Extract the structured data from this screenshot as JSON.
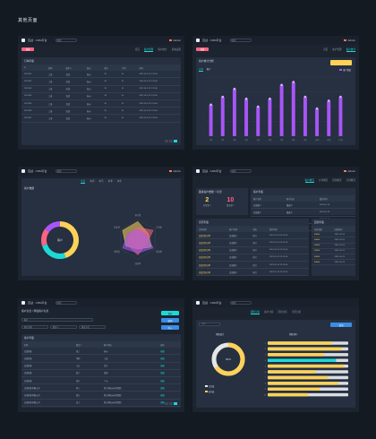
{
  "page_title": "其他页面",
  "app": {
    "name": "百战 · CRM平台",
    "search_placeholder": "搜索",
    "user": "Admin"
  },
  "colors": {
    "accent_cyan": "#1dd9d6",
    "accent_pink": "#ff6384",
    "accent_yellow": "#ffd257",
    "accent_purple": "#a855f7",
    "accent_blue": "#3a8ee6",
    "bg": "#131a22",
    "panel": "#263040"
  },
  "s1": {
    "btn": "新建",
    "tabs": [
      "首页",
      "客户管理",
      "客户统计",
      "系统设置"
    ],
    "active_tab": 1,
    "panel_title": "订单列表",
    "headers": [
      "ID",
      "名称",
      "联系人",
      "城市",
      "客户",
      "订单",
      "时间"
    ],
    "rows": [
      [
        "2021101",
        "上海",
        "百战",
        "杭州",
        "30",
        "41",
        "2021-01-13 12:12:00"
      ],
      [
        "2021102",
        "上海",
        "百战",
        "杭州",
        "30",
        "41",
        "2021-01-13 12:12:00"
      ],
      [
        "2021103",
        "上海",
        "百战",
        "杭州",
        "30",
        "41",
        "2021-01-13 12:12:00"
      ],
      [
        "2021104",
        "上海",
        "百战",
        "杭州",
        "30",
        "41",
        "2021-01-13 12:12:00"
      ],
      [
        "2021105",
        "上海",
        "百战",
        "杭州",
        "30",
        "41",
        "2021-01-13 12:12:00"
      ],
      [
        "2021106",
        "上海",
        "百战",
        "杭州",
        "30",
        "41",
        "2021-01-13 12:12:00"
      ],
      [
        "2021107",
        "上海",
        "百战",
        "杭州",
        "30",
        "41",
        "2021-01-13 12:12:00"
      ]
    ]
  },
  "s2": {
    "btn": "新建",
    "tabs": [
      "首页",
      "客户管理",
      "客户统计"
    ],
    "active_tab": 2,
    "panel_title": "客户统计分析",
    "sub_tabs": [
      "订单",
      "客户"
    ],
    "legend": "客户数量",
    "yellow_btn": "",
    "chart_data": {
      "type": "bar",
      "categories": [
        "1月",
        "2月",
        "3月",
        "4月",
        "5月",
        "6月",
        "7月",
        "8月",
        "9月",
        "10月",
        "11月",
        "12月"
      ],
      "values": [
        32,
        40,
        48,
        38,
        30,
        38,
        52,
        55,
        40,
        28,
        36,
        40
      ],
      "ylim": [
        0,
        60
      ]
    }
  },
  "s3": {
    "tabs": [
      "今日",
      "本周",
      "本月",
      "本季",
      "本年"
    ],
    "active_tab": 0,
    "panel_title": "客户数据",
    "donut_center": "客户",
    "donut": [
      {
        "name": "A",
        "value": 45,
        "color": "#ffd257"
      },
      {
        "name": "B",
        "value": 25,
        "color": "#1dd9d6"
      },
      {
        "name": "C",
        "value": 15,
        "color": "#ff6384"
      },
      {
        "name": "D",
        "value": 15,
        "color": "#a855f7"
      }
    ],
    "radar_labels": [
      "客户数",
      "订单数",
      "成交额",
      "回款率",
      "满意度",
      "转化率"
    ]
  },
  "s4": {
    "tabs": [
      "客户概况",
      "订单概况",
      "回款概况",
      "合同概况"
    ],
    "active_tab": 0,
    "stats_title": "跟进客户数量（今日）",
    "stat_a": "2",
    "stat_b": "10",
    "stat_a_label": "新增客户",
    "stat_b_label": "跟进客户",
    "right_title": "客户列表",
    "right_headers": [
      "客户名称",
      "客户状态",
      "联系时间"
    ],
    "right_rows": [
      [
        "百战客户",
        "跟进中",
        "2021-01-13"
      ],
      [
        "百战客户",
        "跟进中",
        "2021-01-13"
      ],
      [
        "百战客户",
        "跟进中",
        "2021-01-13"
      ],
      [
        "百战客户",
        "跟进中",
        "2021-01-13"
      ]
    ],
    "bottom_title": "合同列表",
    "bottom_headers": [
      "合同名称",
      "客户名称",
      "状态",
      "签约时间"
    ],
    "bottom_rows": [
      [
        "百战合同订单",
        "百战客户",
        "执行",
        "2021-01-13 12:12:00"
      ],
      [
        "百战合同订单",
        "百战客户",
        "执行",
        "2021-01-13 12:12:00"
      ],
      [
        "百战合同订单",
        "百战客户",
        "执行",
        "2021-01-13 12:12:00"
      ],
      [
        "百战合同订单",
        "百战客户",
        "执行",
        "2021-01-13 12:12:00"
      ],
      [
        "百战合同订单",
        "百战客户",
        "执行",
        "2021-01-13 12:12:00"
      ],
      [
        "百战合同订单",
        "百战客户",
        "执行",
        "2021-01-13 12:12:00"
      ]
    ],
    "side_title": "回款列表",
    "side_headers": [
      "回款金额",
      "回款时间"
    ],
    "side_rows": [
      [
        "30000",
        "2021-01-13"
      ],
      [
        "30000",
        "2021-01-13"
      ],
      [
        "30000",
        "2021-01-13"
      ],
      [
        "30000",
        "2021-01-13"
      ],
      [
        "30000",
        "2021-01-13"
      ],
      [
        "30000",
        "2021-01-13"
      ]
    ]
  },
  "s5": {
    "form_title": "客户信息 / 添加客户信息",
    "fields": [
      "客户",
      "客户名称",
      "联系人",
      "联系方式"
    ],
    "btn_a": "保存",
    "btn_b": "取消",
    "btn_c": "导入",
    "list_title": "客户列表",
    "headers": [
      "名称",
      "联系人",
      "客户地址",
      "操作"
    ],
    "rows": [
      [
        "百战科技",
        "张三",
        "杭州",
        "编辑"
      ],
      [
        "百战科技",
        "李四",
        "上海",
        "编辑"
      ],
      [
        "百战科技",
        "王五",
        "北京",
        "编辑"
      ],
      [
        "百战科技",
        "赵六",
        "深圳",
        "编辑"
      ],
      [
        "百战科技",
        "钱七",
        "广州",
        "编辑"
      ],
      [
        "百战科技有限公司",
        "孙八",
        "浙江省杭州市西湖区",
        "编辑"
      ],
      [
        "百战科技有限公司",
        "周九",
        "浙江省杭州市西湖区",
        "编辑"
      ],
      [
        "百战科技有限公司",
        "吴十",
        "浙江省杭州市西湖区",
        "编辑"
      ]
    ]
  },
  "s6": {
    "tabs": [
      "销售分析",
      "客户分析",
      "回款分析",
      "合同分析"
    ],
    "active_tab": 0,
    "select": "2021",
    "btn": "查询",
    "left_title": "销售统计",
    "right_title": "销售排行",
    "donut_center": "66%",
    "donut_value": 66,
    "legend": [
      "已完成",
      "未完成"
    ],
    "bars": [
      {
        "name": "1",
        "value": 80,
        "color": "#ffd257"
      },
      {
        "name": "2",
        "value": 92,
        "color": "#ffd257"
      },
      {
        "name": "3",
        "value": 70,
        "color": "#ffd257"
      },
      {
        "name": "4",
        "value": 85,
        "color": "#1dd9d6"
      },
      {
        "name": "5",
        "value": 95,
        "color": "#ffd257"
      },
      {
        "name": "6",
        "value": 60,
        "color": "#ffd257"
      },
      {
        "name": "7",
        "value": 75,
        "color": "#ffd257"
      },
      {
        "name": "8",
        "value": 88,
        "color": "#ffd257"
      },
      {
        "name": "9",
        "value": 65,
        "color": "#ffd257"
      },
      {
        "name": "10",
        "value": 50,
        "color": "#ffd257"
      }
    ]
  }
}
